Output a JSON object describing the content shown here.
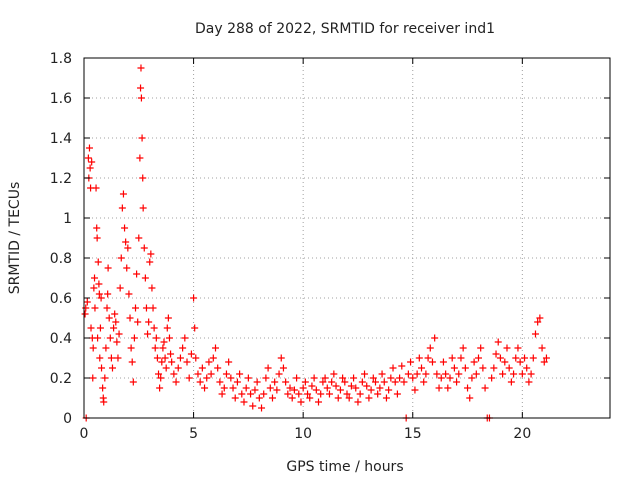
{
  "chart_data": {
    "type": "scatter",
    "title": "Day 288 of 2022, SRMTID for receiver ind1",
    "xlabel": "GPS time / hours",
    "ylabel": "SRMTID / TECUs",
    "xlim": [
      0,
      24
    ],
    "ylim": [
      0,
      1.8
    ],
    "xticks": [
      0,
      5,
      10,
      15,
      20
    ],
    "yticks": [
      0,
      0.2,
      0.4,
      0.6,
      0.8,
      1,
      1.2,
      1.4,
      1.6,
      1.8
    ],
    "ytick_labels": [
      "0",
      "0.2",
      "0.4",
      "0.6",
      "0.8",
      "1",
      "1.2",
      "1.4",
      "1.6",
      "1.8"
    ],
    "grid": true,
    "marker": "+",
    "series_color": "#ff0000",
    "series": [
      {
        "name": "SRMTID",
        "points": [
          [
            0.05,
            0.52
          ],
          [
            0.08,
            0.55
          ],
          [
            0.1,
            0.0
          ],
          [
            0.15,
            0.58
          ],
          [
            0.2,
            1.3
          ],
          [
            0.22,
            1.2
          ],
          [
            0.25,
            1.35
          ],
          [
            0.28,
            1.25
          ],
          [
            0.3,
            1.15
          ],
          [
            0.32,
            0.45
          ],
          [
            0.35,
            1.28
          ],
          [
            0.38,
            0.4
          ],
          [
            0.4,
            0.2
          ],
          [
            0.42,
            0.35
          ],
          [
            0.45,
            0.65
          ],
          [
            0.48,
            0.7
          ],
          [
            0.5,
            0.55
          ],
          [
            0.55,
            1.15
          ],
          [
            0.58,
            0.95
          ],
          [
            0.6,
            0.9
          ],
          [
            0.62,
            0.4
          ],
          [
            0.65,
            0.78
          ],
          [
            0.68,
            0.67
          ],
          [
            0.7,
            0.62
          ],
          [
            0.72,
            0.3
          ],
          [
            0.75,
            0.45
          ],
          [
            0.78,
            0.6
          ],
          [
            0.8,
            0.25
          ],
          [
            0.85,
            0.15
          ],
          [
            0.88,
            0.1
          ],
          [
            0.9,
            0.08
          ],
          [
            0.95,
            0.2
          ],
          [
            1.0,
            0.35
          ],
          [
            1.05,
            0.55
          ],
          [
            1.08,
            0.62
          ],
          [
            1.1,
            0.75
          ],
          [
            1.15,
            0.5
          ],
          [
            1.2,
            0.4
          ],
          [
            1.25,
            0.3
          ],
          [
            1.3,
            0.25
          ],
          [
            1.35,
            0.45
          ],
          [
            1.4,
            0.52
          ],
          [
            1.45,
            0.48
          ],
          [
            1.5,
            0.38
          ],
          [
            1.55,
            0.3
          ],
          [
            1.6,
            0.42
          ],
          [
            1.65,
            0.65
          ],
          [
            1.7,
            0.8
          ],
          [
            1.75,
            1.05
          ],
          [
            1.8,
            1.12
          ],
          [
            1.85,
            0.95
          ],
          [
            1.9,
            0.88
          ],
          [
            1.95,
            0.75
          ],
          [
            2.0,
            0.85
          ],
          [
            2.05,
            0.62
          ],
          [
            2.1,
            0.5
          ],
          [
            2.15,
            0.35
          ],
          [
            2.2,
            0.28
          ],
          [
            2.25,
            0.18
          ],
          [
            2.3,
            0.4
          ],
          [
            2.35,
            0.55
          ],
          [
            2.4,
            0.72
          ],
          [
            2.45,
            0.48
          ],
          [
            2.5,
            0.9
          ],
          [
            2.55,
            1.3
          ],
          [
            2.58,
            1.65
          ],
          [
            2.6,
            1.75
          ],
          [
            2.62,
            1.6
          ],
          [
            2.65,
            1.4
          ],
          [
            2.68,
            1.2
          ],
          [
            2.7,
            1.05
          ],
          [
            2.75,
            0.85
          ],
          [
            2.8,
            0.7
          ],
          [
            2.85,
            0.55
          ],
          [
            2.9,
            0.42
          ],
          [
            2.95,
            0.48
          ],
          [
            3.0,
            0.78
          ],
          [
            3.05,
            0.82
          ],
          [
            3.1,
            0.65
          ],
          [
            3.15,
            0.55
          ],
          [
            3.2,
            0.45
          ],
          [
            3.25,
            0.35
          ],
          [
            3.3,
            0.4
          ],
          [
            3.35,
            0.3
          ],
          [
            3.4,
            0.22
          ],
          [
            3.45,
            0.15
          ],
          [
            3.5,
            0.2
          ],
          [
            3.55,
            0.28
          ],
          [
            3.6,
            0.35
          ],
          [
            3.65,
            0.38
          ],
          [
            3.7,
            0.3
          ],
          [
            3.75,
            0.25
          ],
          [
            3.8,
            0.45
          ],
          [
            3.85,
            0.5
          ],
          [
            3.9,
            0.4
          ],
          [
            3.95,
            0.32
          ],
          [
            4.0,
            0.28
          ],
          [
            4.1,
            0.22
          ],
          [
            4.2,
            0.18
          ],
          [
            4.3,
            0.25
          ],
          [
            4.4,
            0.3
          ],
          [
            4.5,
            0.35
          ],
          [
            4.6,
            0.4
          ],
          [
            4.7,
            0.28
          ],
          [
            4.8,
            0.2
          ],
          [
            4.9,
            0.32
          ],
          [
            5.0,
            0.6
          ],
          [
            5.05,
            0.45
          ],
          [
            5.1,
            0.3
          ],
          [
            5.2,
            0.22
          ],
          [
            5.3,
            0.18
          ],
          [
            5.4,
            0.25
          ],
          [
            5.5,
            0.15
          ],
          [
            5.6,
            0.2
          ],
          [
            5.7,
            0.28
          ],
          [
            5.8,
            0.22
          ],
          [
            5.9,
            0.3
          ],
          [
            6.0,
            0.35
          ],
          [
            6.1,
            0.25
          ],
          [
            6.2,
            0.18
          ],
          [
            6.3,
            0.12
          ],
          [
            6.4,
            0.15
          ],
          [
            6.5,
            0.22
          ],
          [
            6.6,
            0.28
          ],
          [
            6.7,
            0.2
          ],
          [
            6.8,
            0.15
          ],
          [
            6.9,
            0.1
          ],
          [
            7.0,
            0.18
          ],
          [
            7.1,
            0.22
          ],
          [
            7.2,
            0.12
          ],
          [
            7.3,
            0.08
          ],
          [
            7.4,
            0.15
          ],
          [
            7.5,
            0.2
          ],
          [
            7.6,
            0.12
          ],
          [
            7.7,
            0.06
          ],
          [
            7.8,
            0.14
          ],
          [
            7.9,
            0.18
          ],
          [
            8.0,
            0.1
          ],
          [
            8.1,
            0.05
          ],
          [
            8.2,
            0.12
          ],
          [
            8.3,
            0.2
          ],
          [
            8.4,
            0.25
          ],
          [
            8.5,
            0.15
          ],
          [
            8.6,
            0.1
          ],
          [
            8.7,
            0.18
          ],
          [
            8.8,
            0.14
          ],
          [
            8.9,
            0.22
          ],
          [
            9.0,
            0.3
          ],
          [
            9.1,
            0.25
          ],
          [
            9.2,
            0.18
          ],
          [
            9.3,
            0.12
          ],
          [
            9.4,
            0.15
          ],
          [
            9.5,
            0.1
          ],
          [
            9.6,
            0.14
          ],
          [
            9.7,
            0.2
          ],
          [
            9.8,
            0.12
          ],
          [
            9.9,
            0.08
          ],
          [
            10.0,
            0.15
          ],
          [
            10.1,
            0.18
          ],
          [
            10.2,
            0.12
          ],
          [
            10.3,
            0.1
          ],
          [
            10.4,
            0.16
          ],
          [
            10.5,
            0.2
          ],
          [
            10.6,
            0.14
          ],
          [
            10.7,
            0.08
          ],
          [
            10.8,
            0.12
          ],
          [
            10.9,
            0.18
          ],
          [
            11.0,
            0.2
          ],
          [
            11.1,
            0.15
          ],
          [
            11.2,
            0.12
          ],
          [
            11.3,
            0.18
          ],
          [
            11.4,
            0.22
          ],
          [
            11.5,
            0.16
          ],
          [
            11.6,
            0.1
          ],
          [
            11.7,
            0.14
          ],
          [
            11.8,
            0.2
          ],
          [
            11.9,
            0.18
          ],
          [
            12.0,
            0.12
          ],
          [
            12.1,
            0.1
          ],
          [
            12.2,
            0.16
          ],
          [
            12.3,
            0.2
          ],
          [
            12.4,
            0.15
          ],
          [
            12.5,
            0.08
          ],
          [
            12.6,
            0.12
          ],
          [
            12.7,
            0.18
          ],
          [
            12.8,
            0.22
          ],
          [
            12.9,
            0.16
          ],
          [
            13.0,
            0.1
          ],
          [
            13.1,
            0.14
          ],
          [
            13.2,
            0.2
          ],
          [
            13.3,
            0.18
          ],
          [
            13.4,
            0.12
          ],
          [
            13.5,
            0.15
          ],
          [
            13.6,
            0.22
          ],
          [
            13.7,
            0.18
          ],
          [
            13.8,
            0.1
          ],
          [
            13.9,
            0.14
          ],
          [
            14.0,
            0.2
          ],
          [
            14.1,
            0.25
          ],
          [
            14.2,
            0.18
          ],
          [
            14.3,
            0.12
          ],
          [
            14.4,
            0.2
          ],
          [
            14.5,
            0.26
          ],
          [
            14.6,
            0.18
          ],
          [
            14.7,
            0.0
          ],
          [
            14.8,
            0.22
          ],
          [
            14.9,
            0.28
          ],
          [
            15.0,
            0.2
          ],
          [
            15.1,
            0.14
          ],
          [
            15.2,
            0.22
          ],
          [
            15.3,
            0.3
          ],
          [
            15.4,
            0.25
          ],
          [
            15.5,
            0.18
          ],
          [
            15.6,
            0.22
          ],
          [
            15.7,
            0.3
          ],
          [
            15.8,
            0.35
          ],
          [
            15.9,
            0.28
          ],
          [
            16.0,
            0.4
          ],
          [
            16.1,
            0.22
          ],
          [
            16.2,
            0.15
          ],
          [
            16.3,
            0.2
          ],
          [
            16.4,
            0.28
          ],
          [
            16.5,
            0.22
          ],
          [
            16.6,
            0.15
          ],
          [
            16.7,
            0.2
          ],
          [
            16.8,
            0.3
          ],
          [
            16.9,
            0.25
          ],
          [
            17.0,
            0.18
          ],
          [
            17.1,
            0.22
          ],
          [
            17.2,
            0.3
          ],
          [
            17.3,
            0.35
          ],
          [
            17.4,
            0.25
          ],
          [
            17.5,
            0.15
          ],
          [
            17.6,
            0.1
          ],
          [
            17.7,
            0.2
          ],
          [
            17.8,
            0.28
          ],
          [
            17.9,
            0.22
          ],
          [
            18.0,
            0.3
          ],
          [
            18.1,
            0.35
          ],
          [
            18.2,
            0.25
          ],
          [
            18.3,
            0.15
          ],
          [
            18.4,
            0.0
          ],
          [
            18.5,
            0.0
          ],
          [
            18.6,
            0.2
          ],
          [
            18.7,
            0.25
          ],
          [
            18.8,
            0.32
          ],
          [
            18.9,
            0.38
          ],
          [
            19.0,
            0.3
          ],
          [
            19.1,
            0.22
          ],
          [
            19.2,
            0.28
          ],
          [
            19.3,
            0.35
          ],
          [
            19.4,
            0.25
          ],
          [
            19.5,
            0.18
          ],
          [
            19.6,
            0.22
          ],
          [
            19.7,
            0.3
          ],
          [
            19.8,
            0.35
          ],
          [
            19.9,
            0.28
          ],
          [
            20.0,
            0.22
          ],
          [
            20.1,
            0.3
          ],
          [
            20.2,
            0.25
          ],
          [
            20.3,
            0.18
          ],
          [
            20.4,
            0.22
          ],
          [
            20.5,
            0.3
          ],
          [
            20.6,
            0.42
          ],
          [
            20.7,
            0.48
          ],
          [
            20.8,
            0.5
          ],
          [
            20.9,
            0.35
          ],
          [
            21.0,
            0.28
          ],
          [
            21.1,
            0.3
          ]
        ]
      }
    ]
  }
}
